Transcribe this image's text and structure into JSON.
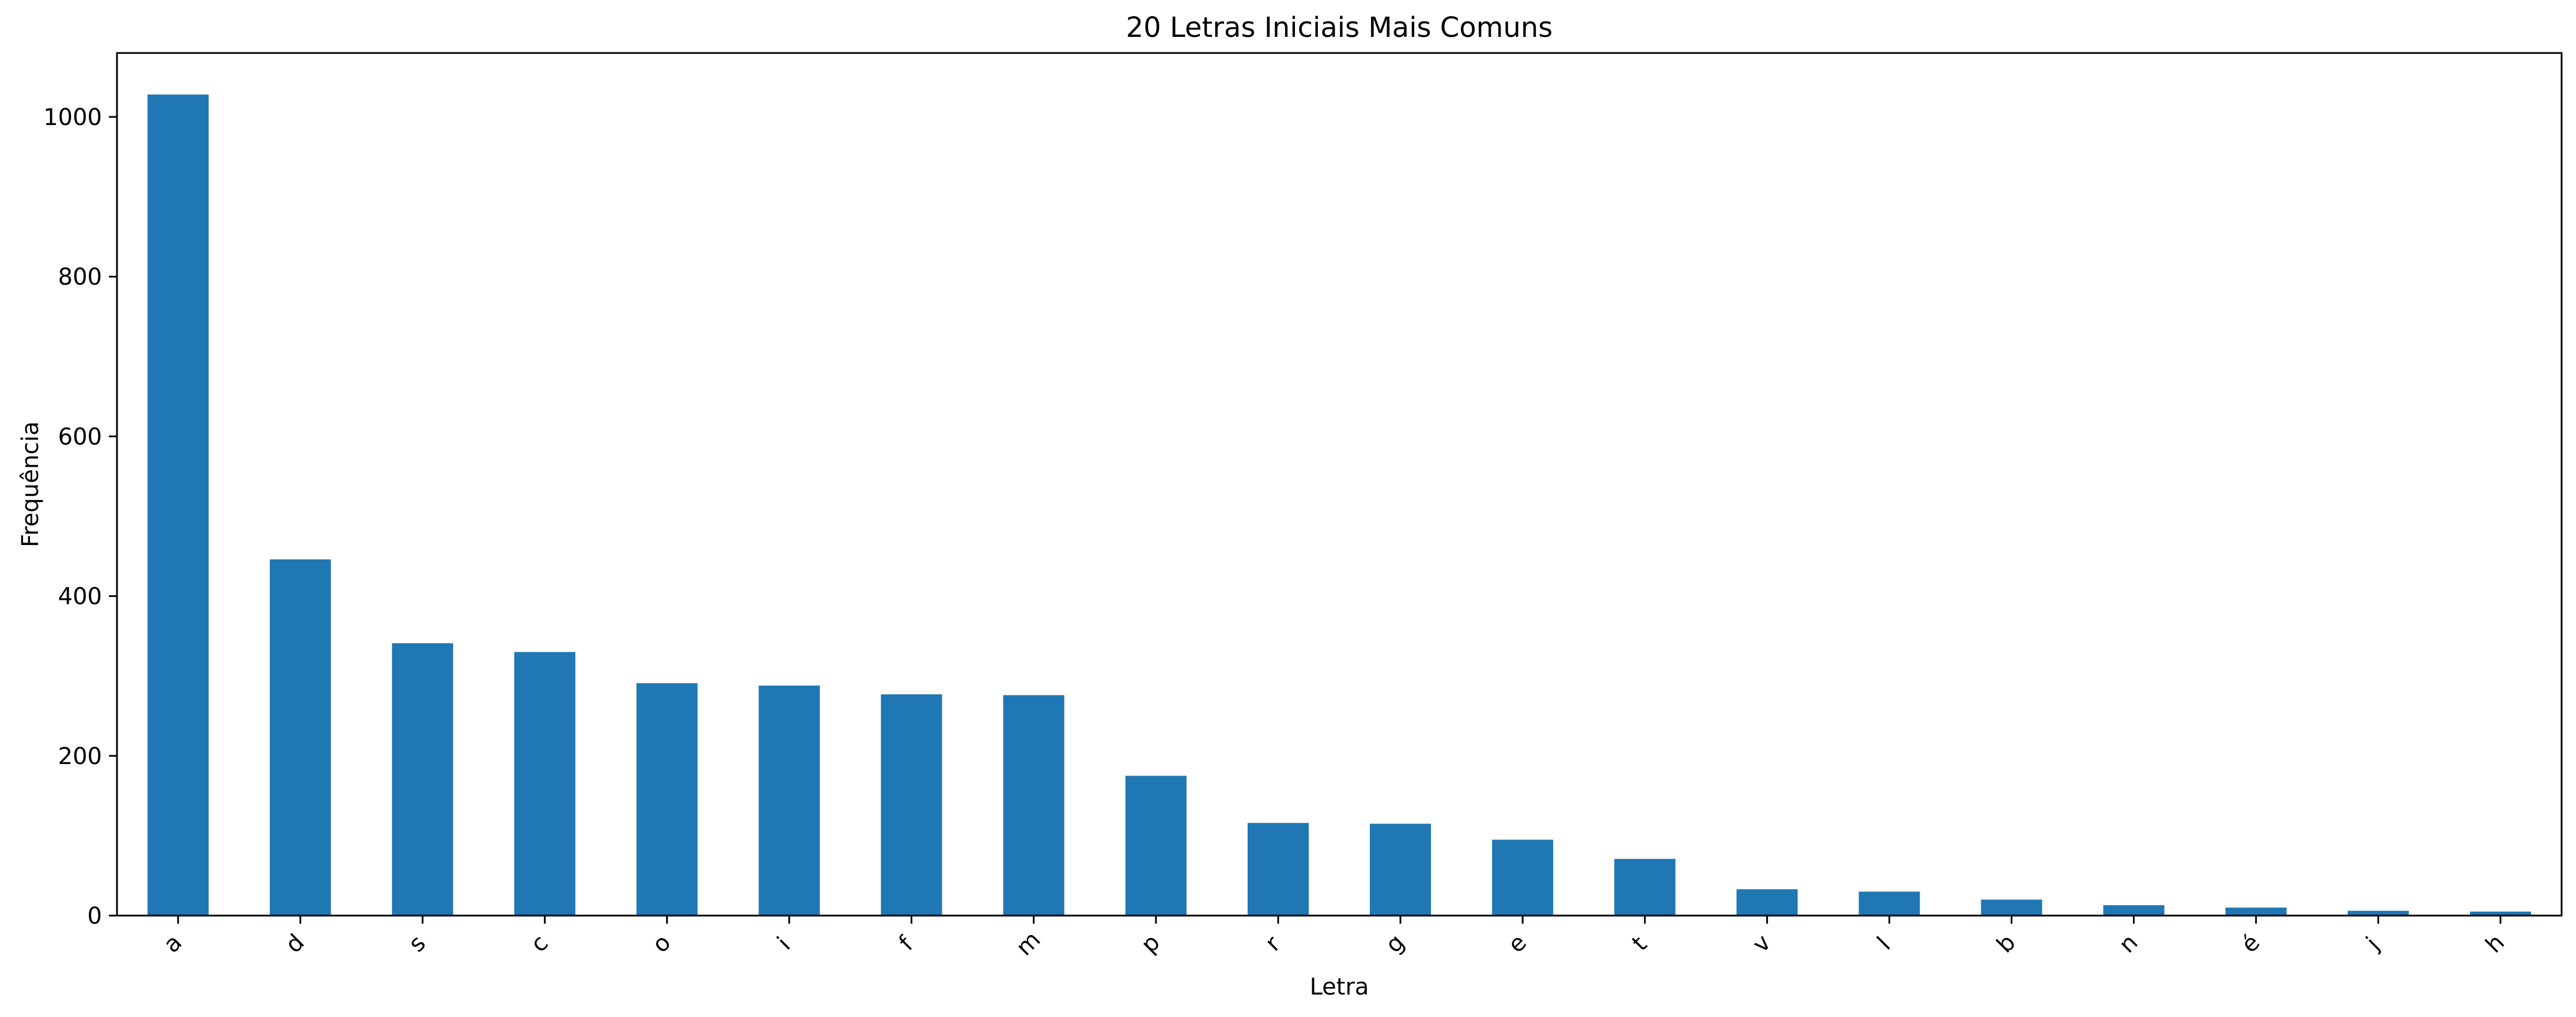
{
  "chart_data": {
    "type": "bar",
    "title": "20 Letras Iniciais Mais Comuns",
    "xlabel": "Letra",
    "ylabel": "Frequência",
    "categories": [
      "a",
      "d",
      "s",
      "c",
      "o",
      "i",
      "f",
      "m",
      "p",
      "r",
      "g",
      "e",
      "t",
      "v",
      "l",
      "b",
      "n",
      "é",
      "j",
      "h"
    ],
    "values": [
      1028,
      446,
      341,
      330,
      291,
      288,
      277,
      276,
      175,
      116,
      115,
      95,
      71,
      33,
      30,
      20,
      13,
      10,
      6,
      5
    ],
    "ylim": [
      0,
      1080
    ],
    "yticks": [
      0,
      200,
      400,
      600,
      800,
      1000
    ],
    "bar_color": "#1f77b4",
    "grid": false,
    "legend": "none"
  }
}
